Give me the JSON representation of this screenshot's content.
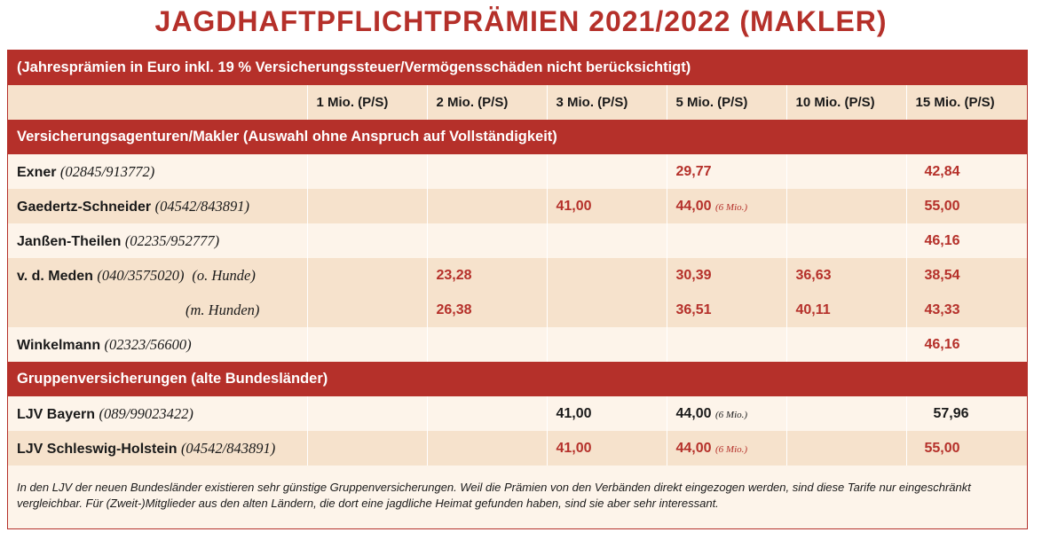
{
  "title": "JAGDHAFTPFLICHTPRÄMIEN 2021/2022 (MAKLER)",
  "header_band": "(Jahresprämien in Euro inkl. 19 % Versicherungssteuer/Vermögensschäden nicht berücksichtigt)",
  "columns": [
    "1 Mio. (P/S)",
    "2 Mio. (P/S)",
    "3 Mio. (P/S)",
    "5 Mio. (P/S)",
    "10 Mio. (P/S)",
    "15 Mio. (P/S)"
  ],
  "section1": "Versicherungsagenturen/Makler (Auswahl ohne Anspruch auf Vollständigkeit)",
  "section2": "Gruppenversicherungen (alte Bundesländer)",
  "rows": {
    "exner": {
      "name": "Exner",
      "phone": "(02845/913772)",
      "c5": "29,77",
      "c15": "42,84"
    },
    "gaedertz": {
      "name": "Gaedertz-Schneider",
      "phone": "(04542/843891)",
      "c3": "41,00",
      "c5": "44,00",
      "c5_note": "(6 Mio.)",
      "c15": "55,00"
    },
    "janssen": {
      "name": "Janßen-Theilen",
      "phone": "(02235/952777)",
      "c15": "46,16"
    },
    "meden1": {
      "name": "v. d. Meden",
      "phone": "(040/3575020)",
      "qual": "(o. Hunde)",
      "c2": "23,28",
      "c5": "30,39",
      "c10": "36,63",
      "c15": "38,54"
    },
    "meden2": {
      "qual": "(m. Hunden)",
      "c2": "26,38",
      "c5": "36,51",
      "c10": "40,11",
      "c15": "43,33"
    },
    "winkelmann": {
      "name": "Winkelmann",
      "phone": "(02323/56600)",
      "c15": "46,16"
    },
    "ljv_bayern": {
      "name": "LJV Bayern",
      "phone": "(089/99023422)",
      "c3": "41,00",
      "c5": "44,00",
      "c5_note": "(6 Mio.)",
      "c15": "57,96"
    },
    "ljv_sh": {
      "name": "LJV Schleswig-Holstein",
      "phone": "(04542/843891)",
      "c3": "41,00",
      "c5": "44,00",
      "c5_note": "(6 Mio.)",
      "c15": "55,00"
    }
  },
  "footer": "In den LJV der neuen Bundesländer existieren sehr günstige Gruppenversicherungen. Weil die Prämien von den Verbänden direkt eingezogen werden, sind diese Tarife nur eingeschränkt vergleichbar. Für (Zweit-)Mitglieder aus den alten Ländern, die dort eine jagdliche Heimat gefunden haben, sind sie aber sehr interessant."
}
